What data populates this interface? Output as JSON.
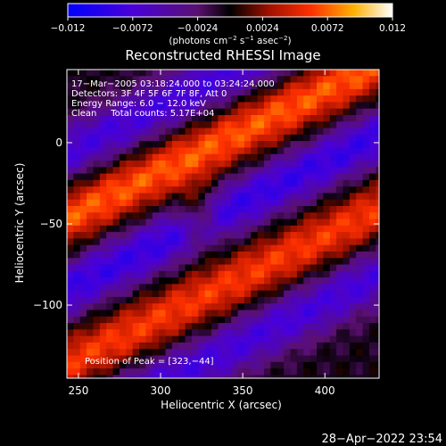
{
  "chart_data": {
    "type": "heatmap",
    "title": "Reconstructed RHESSI Image",
    "xlabel": "Heliocentric X (arcsec)",
    "ylabel": "Heliocentric Y (arcsec)",
    "xlim": [
      243,
      433
    ],
    "ylim": [
      -145,
      45
    ],
    "x_ticks": [
      250,
      300,
      350,
      400
    ],
    "y_ticks": [
      0,
      -50,
      -100
    ],
    "colorbar": {
      "range": [
        -0.012,
        0.012
      ],
      "ticks": [
        -0.012,
        -0.0072,
        -0.0024,
        0.0024,
        0.0072,
        0.012
      ],
      "tick_labels": [
        "−0.012",
        "−0.0072",
        "−0.0024",
        "0.0024",
        "0.0072",
        "0.012"
      ],
      "unit_main": "(photons cm",
      "unit_sup1": "−2",
      "unit_mid": " s",
      "unit_sup2": "−1",
      "unit_mid2": " asec",
      "unit_sup3": "−2",
      "unit_end": ")"
    },
    "info_lines": [
      "17−Mar−2005 03:18:24.000 to 03:24:24.000",
      "Detectors: 3F 4F 5F 6F 7F 8F, Att 0",
      "Energy Range: 6.0 − 12.0 keV",
      "Clean     Total counts: 5.17E+04"
    ],
    "peak_label": "Position of Peak = [323,−44]",
    "peak": [
      323,
      -44
    ],
    "peak_value": 0.012,
    "ridges": [
      {
        "intercept_y_at_x300": -18,
        "slope": 0.5,
        "amplitude": 0.0075
      },
      {
        "intercept_y_at_x300": -108,
        "slope": 0.5,
        "amplitude": 0.0065
      }
    ],
    "troughs": [
      {
        "intercept_y_at_x300": 22,
        "slope": 0.5,
        "amplitude": -0.007
      },
      {
        "intercept_y_at_x300": -62,
        "slope": 0.5,
        "amplitude": -0.008
      },
      {
        "intercept_y_at_x300": -148,
        "slope": 0.5,
        "amplitude": -0.007
      }
    ]
  },
  "footer": {
    "timestamp": "28−Apr−2022 23:54"
  }
}
